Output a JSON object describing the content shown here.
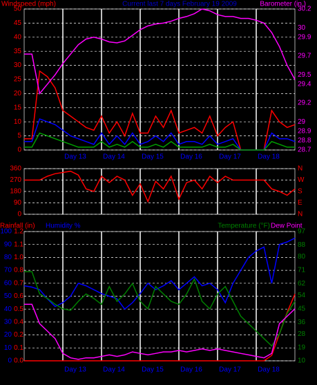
{
  "chart_data": [
    {
      "type": "line",
      "title": "Current last 7 days February 19 2009",
      "x": [
        12.0,
        12.2,
        12.4,
        12.6,
        12.8,
        13.0,
        13.2,
        13.4,
        13.6,
        13.8,
        14.0,
        14.2,
        14.4,
        14.6,
        14.8,
        15.0,
        15.2,
        15.4,
        15.6,
        15.8,
        16.0,
        16.2,
        16.4,
        16.6,
        16.8,
        17.0,
        17.2,
        17.4,
        17.6,
        17.8,
        18.0,
        18.2,
        18.4,
        18.6,
        18.8,
        19.0
      ],
      "xlim": [
        12,
        19
      ],
      "xticks": [
        {
          "value": 13,
          "label": "Day 13"
        },
        {
          "value": 14,
          "label": "Day 14"
        },
        {
          "value": 15,
          "label": "Day 15"
        },
        {
          "value": 16,
          "label": "Day 16"
        },
        {
          "value": 17,
          "label": "Day 17"
        },
        {
          "value": 18,
          "label": "Day 18"
        }
      ],
      "ylim": [
        0,
        50
      ],
      "yticks": [
        0,
        5,
        10,
        15,
        20,
        25,
        30,
        35,
        40,
        45,
        50
      ],
      "y2lim": [
        28.7,
        30.2
      ],
      "y2ticks": [
        28.7,
        28.8,
        28.9,
        29.0,
        29.2,
        29.4,
        29.5,
        29.7,
        29.9,
        30.0,
        30.2
      ],
      "grid": true,
      "series": [
        {
          "name": "Windspeed (mph)",
          "color": "#ff0000",
          "values": [
            4,
            4,
            28,
            26,
            22,
            14,
            12,
            10,
            8,
            7,
            12,
            6,
            10,
            5,
            13,
            6,
            6,
            12,
            8,
            14,
            6,
            7,
            8,
            6,
            12,
            5,
            8,
            10,
            0,
            0,
            0,
            0,
            14,
            10,
            8,
            9
          ]
        },
        {
          "color": "#0000ff",
          "values": [
            3,
            3,
            11,
            10,
            9,
            7,
            5,
            4,
            3,
            2,
            6,
            2,
            5,
            2,
            6,
            2,
            3,
            5,
            3,
            6,
            2,
            3,
            3,
            2,
            5,
            2,
            3,
            4,
            0,
            0,
            0,
            0,
            6,
            4,
            4,
            3
          ]
        },
        {
          "color": "#00a000",
          "values": [
            1,
            1,
            6,
            5,
            4,
            3,
            2,
            1,
            1,
            1,
            3,
            1,
            2,
            1,
            3,
            1,
            1,
            2,
            1,
            3,
            1,
            1,
            1,
            1,
            2,
            1,
            1,
            2,
            0,
            0,
            0,
            0,
            3,
            2,
            1,
            1
          ]
        },
        {
          "name": "Barometer (in.)",
          "color": "#ff00ff",
          "axis": "y2",
          "values": [
            29.72,
            29.72,
            29.3,
            29.4,
            29.5,
            29.62,
            29.72,
            29.82,
            29.88,
            29.9,
            29.88,
            29.85,
            29.84,
            29.86,
            29.92,
            29.98,
            30.02,
            30.04,
            30.05,
            30.07,
            30.1,
            30.12,
            30.15,
            30.2,
            30.18,
            30.14,
            30.12,
            30.12,
            30.1,
            30.1,
            30.08,
            30.05,
            29.95,
            29.8,
            29.6,
            29.45
          ]
        }
      ]
    },
    {
      "type": "line",
      "x": [
        12.0,
        12.2,
        12.4,
        12.6,
        12.8,
        13.0,
        13.2,
        13.4,
        13.6,
        13.8,
        14.0,
        14.2,
        14.4,
        14.6,
        14.8,
        15.0,
        15.2,
        15.4,
        15.6,
        15.8,
        16.0,
        16.2,
        16.4,
        16.6,
        16.8,
        17.0,
        17.2,
        17.4,
        17.6,
        17.8,
        18.0,
        18.2,
        18.4,
        18.6,
        18.8,
        19.0
      ],
      "xlim": [
        12,
        19
      ],
      "xticks": [
        13,
        14,
        15,
        16,
        17,
        18
      ],
      "ylim": [
        0,
        360
      ],
      "yticks": [
        0,
        90,
        180,
        270,
        360
      ],
      "y2lim": [
        0,
        360
      ],
      "y2ticks": [
        {
          "value": 0,
          "label": "N"
        },
        {
          "value": 90,
          "label": "E"
        },
        {
          "value": 180,
          "label": "S"
        },
        {
          "value": 270,
          "label": "W"
        },
        {
          "value": 360,
          "label": "N"
        }
      ],
      "grid": true,
      "series": [
        {
          "color": "#ff0000",
          "values": [
            270,
            270,
            270,
            300,
            320,
            330,
            340,
            310,
            200,
            180,
            300,
            250,
            300,
            270,
            150,
            240,
            100,
            260,
            200,
            300,
            120,
            250,
            270,
            200,
            300,
            250,
            300,
            270,
            270,
            270,
            270,
            270,
            200,
            180,
            150,
            200
          ]
        }
      ]
    },
    {
      "type": "line",
      "x": [
        12.0,
        12.2,
        12.4,
        12.6,
        12.8,
        13.0,
        13.2,
        13.4,
        13.6,
        13.8,
        14.0,
        14.2,
        14.4,
        14.6,
        14.8,
        15.0,
        15.2,
        15.4,
        15.6,
        15.8,
        16.0,
        16.2,
        16.4,
        16.6,
        16.8,
        17.0,
        17.2,
        17.4,
        17.6,
        17.8,
        18.0,
        18.2,
        18.4,
        18.6,
        18.8,
        19.0
      ],
      "xlim": [
        12,
        19
      ],
      "xticks": [
        {
          "value": 13,
          "label": "Day 13"
        },
        {
          "value": 14,
          "label": "Day 14"
        },
        {
          "value": 15,
          "label": "Day 15"
        },
        {
          "value": 16,
          "label": "Day 16"
        },
        {
          "value": 17,
          "label": "Day 17"
        },
        {
          "value": 18,
          "label": "Day 18"
        }
      ],
      "ylim": [
        0,
        100
      ],
      "yticks": [
        0,
        10,
        20,
        30,
        40,
        50,
        60,
        70,
        80,
        90,
        100
      ],
      "y2lim": [
        10,
        97
      ],
      "y2ticks": [
        10,
        19,
        28,
        36,
        45,
        54,
        62,
        71,
        80,
        88,
        97
      ],
      "y3lim": [
        0,
        1.2
      ],
      "y3ticks": [
        {
          "value": 0,
          "label": "0.0"
        },
        {
          "value": 0.12,
          "label": "0.1"
        },
        {
          "value": 0.24,
          "label": "0.2"
        },
        {
          "value": 0.36,
          "label": "0.4"
        },
        {
          "value": 0.48,
          "label": "0.5"
        },
        {
          "value": 0.6,
          "label": "0.6"
        },
        {
          "value": 0.72,
          "label": "0.7"
        },
        {
          "value": 0.84,
          "label": "0.8"
        },
        {
          "value": 0.96,
          "label": "1.0"
        },
        {
          "value": 1.08,
          "label": "1.1"
        },
        {
          "value": 1.2,
          "label": "1.2"
        }
      ],
      "grid": true,
      "series": [
        {
          "name": "Rainfall (in)",
          "color": "#ff0000",
          "axis": "y3",
          "values": [
            0,
            0,
            0,
            0,
            0,
            0,
            0,
            0,
            0,
            0,
            0,
            0,
            0,
            0,
            0,
            0,
            0,
            0,
            0,
            0,
            0,
            0,
            0,
            0,
            0,
            0,
            0,
            0,
            0,
            0,
            0,
            0,
            0.05,
            0.25,
            0.45,
            0.62
          ]
        },
        {
          "name": "Humidity %",
          "color": "#0000ff",
          "values": [
            58,
            57,
            55,
            48,
            42,
            45,
            50,
            60,
            58,
            55,
            52,
            50,
            48,
            40,
            45,
            52,
            60,
            55,
            58,
            62,
            55,
            60,
            65,
            58,
            60,
            55,
            45,
            60,
            70,
            80,
            85,
            88,
            60,
            90,
            92,
            95
          ]
        },
        {
          "name": "Temperature (°F)",
          "color": "#008000",
          "axis": "y2",
          "values": [
            70,
            70,
            55,
            52,
            48,
            45,
            44,
            50,
            55,
            52,
            48,
            60,
            50,
            55,
            62,
            50,
            45,
            60,
            55,
            50,
            48,
            55,
            65,
            50,
            45,
            55,
            60,
            50,
            40,
            35,
            30,
            25,
            20,
            28,
            42,
            50
          ]
        },
        {
          "name": "Dew Point",
          "color": "#ff00ff",
          "axis": "y2",
          "values": [
            48,
            48,
            35,
            30,
            25,
            15,
            12,
            11,
            12,
            12,
            13,
            14,
            13,
            14,
            16,
            15,
            14,
            15,
            16,
            16,
            17,
            16,
            17,
            18,
            17,
            18,
            17,
            16,
            15,
            14,
            13,
            12,
            15,
            35,
            40,
            45
          ]
        }
      ]
    }
  ]
}
